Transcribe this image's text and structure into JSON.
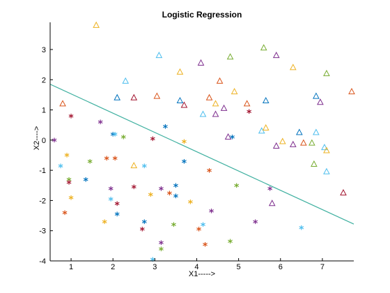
{
  "chart_data": {
    "type": "scatter",
    "title": "Logistic Regression",
    "xlabel": "X1----->",
    "ylabel": "X2---->",
    "xlim": [
      0.5,
      7.75
    ],
    "ylim": [
      -4,
      3.9
    ],
    "xticks": [
      1,
      2,
      3,
      4,
      5,
      6,
      7
    ],
    "yticks": [
      -4,
      -3,
      -2,
      -1,
      0,
      1,
      2,
      3
    ],
    "grid": false,
    "legend": "none",
    "marker_colors": [
      "#0072bd",
      "#d95319",
      "#edb120",
      "#7e2f8e",
      "#77ac30",
      "#4dbeee",
      "#a2142f"
    ],
    "series": [
      {
        "marker": "triangle",
        "points": [
          {
            "x": 1.6,
            "y": 3.8,
            "c": 2
          },
          {
            "x": 3.1,
            "y": 2.8,
            "c": 5
          },
          {
            "x": 4.1,
            "y": 2.55,
            "c": 3
          },
          {
            "x": 4.8,
            "y": 2.75,
            "c": 4
          },
          {
            "x": 5.6,
            "y": 3.05,
            "c": 4
          },
          {
            "x": 5.9,
            "y": 2.8,
            "c": 3
          },
          {
            "x": 6.3,
            "y": 2.4,
            "c": 2
          },
          {
            "x": 7.1,
            "y": 2.2,
            "c": 4
          },
          {
            "x": 2.3,
            "y": 1.95,
            "c": 5
          },
          {
            "x": 3.6,
            "y": 2.25,
            "c": 2
          },
          {
            "x": 4.55,
            "y": 1.95,
            "c": 1
          },
          {
            "x": 7.7,
            "y": 1.6,
            "c": 1
          },
          {
            "x": 0.8,
            "y": 1.2,
            "c": 1
          },
          {
            "x": 2.1,
            "y": 1.4,
            "c": 0
          },
          {
            "x": 2.5,
            "y": 1.4,
            "c": 6
          },
          {
            "x": 3.05,
            "y": 1.45,
            "c": 1
          },
          {
            "x": 3.6,
            "y": 1.3,
            "c": 0
          },
          {
            "x": 3.7,
            "y": 1.15,
            "c": 6
          },
          {
            "x": 4.3,
            "y": 1.4,
            "c": 1
          },
          {
            "x": 4.45,
            "y": 1.2,
            "c": 2
          },
          {
            "x": 4.9,
            "y": 1.6,
            "c": 2
          },
          {
            "x": 5.2,
            "y": 1.2,
            "c": 1
          },
          {
            "x": 5.65,
            "y": 1.3,
            "c": 0
          },
          {
            "x": 6.85,
            "y": 1.45,
            "c": 0
          },
          {
            "x": 6.95,
            "y": 1.25,
            "c": 3
          },
          {
            "x": 4.15,
            "y": 0.85,
            "c": 5
          },
          {
            "x": 4.45,
            "y": 0.85,
            "c": 3
          },
          {
            "x": 4.65,
            "y": 1.05,
            "c": 3
          },
          {
            "x": 5.55,
            "y": 0.3,
            "c": 5
          },
          {
            "x": 5.65,
            "y": 0.4,
            "c": 2
          },
          {
            "x": 6.45,
            "y": 0.25,
            "c": 0
          },
          {
            "x": 6.85,
            "y": 0.25,
            "c": 5
          },
          {
            "x": 4.75,
            "y": 0.1,
            "c": 3
          },
          {
            "x": 5.9,
            "y": -0.2,
            "c": 3
          },
          {
            "x": 6.05,
            "y": -0.05,
            "c": 2
          },
          {
            "x": 6.3,
            "y": -0.15,
            "c": 3
          },
          {
            "x": 6.55,
            "y": -0.1,
            "c": 1
          },
          {
            "x": 6.75,
            "y": -0.1,
            "c": 4
          },
          {
            "x": 7.05,
            "y": -0.25,
            "c": 5
          },
          {
            "x": 7.1,
            "y": -0.35,
            "c": 2
          },
          {
            "x": 6.8,
            "y": -0.8,
            "c": 4
          },
          {
            "x": 7.1,
            "y": -1.05,
            "c": 5
          },
          {
            "x": 7.5,
            "y": -1.75,
            "c": 6
          },
          {
            "x": 5.8,
            "y": -2.1,
            "c": 3
          },
          {
            "x": 2.5,
            "y": -0.85,
            "c": 2
          }
        ]
      },
      {
        "marker": "star",
        "points": [
          {
            "x": 1.0,
            "y": 0.75,
            "c": 6
          },
          {
            "x": 1.7,
            "y": 0.55,
            "c": 3
          },
          {
            "x": 0.6,
            "y": -0.05,
            "c": 3
          },
          {
            "x": 2.0,
            "y": 0.15,
            "c": 0
          },
          {
            "x": 2.05,
            "y": 0.15,
            "c": 5
          },
          {
            "x": 2.25,
            "y": 0.05,
            "c": 4
          },
          {
            "x": 2.95,
            "y": 0.0,
            "c": 6
          },
          {
            "x": 3.25,
            "y": 0.4,
            "c": 0
          },
          {
            "x": 3.7,
            "y": -0.1,
            "c": 2
          },
          {
            "x": 4.85,
            "y": 0.05,
            "c": 0
          },
          {
            "x": 5.25,
            "y": 0.9,
            "c": 6
          },
          {
            "x": 0.9,
            "y": -0.55,
            "c": 2
          },
          {
            "x": 0.75,
            "y": -0.9,
            "c": 5
          },
          {
            "x": 1.45,
            "y": -0.75,
            "c": 4
          },
          {
            "x": 1.85,
            "y": -0.65,
            "c": 1
          },
          {
            "x": 2.05,
            "y": -0.65,
            "c": 1
          },
          {
            "x": 2.75,
            "y": -0.9,
            "c": 5
          },
          {
            "x": 3.7,
            "y": -0.75,
            "c": 0
          },
          {
            "x": 4.3,
            "y": -1.05,
            "c": 1
          },
          {
            "x": 0.95,
            "y": -1.35,
            "c": 4
          },
          {
            "x": 0.95,
            "y": -1.45,
            "c": 6
          },
          {
            "x": 1.35,
            "y": -1.35,
            "c": 0
          },
          {
            "x": 1.95,
            "y": -1.65,
            "c": 3
          },
          {
            "x": 2.5,
            "y": -1.6,
            "c": 6
          },
          {
            "x": 2.9,
            "y": -1.85,
            "c": 2
          },
          {
            "x": 3.15,
            "y": -1.65,
            "c": 3
          },
          {
            "x": 3.35,
            "y": -1.8,
            "c": 1
          },
          {
            "x": 3.5,
            "y": -1.55,
            "c": 0
          },
          {
            "x": 3.5,
            "y": -1.9,
            "c": 0
          },
          {
            "x": 4.95,
            "y": -1.55,
            "c": 4
          },
          {
            "x": 5.75,
            "y": -1.65,
            "c": 3
          },
          {
            "x": 1.0,
            "y": -1.95,
            "c": 2
          },
          {
            "x": 1.95,
            "y": -2.0,
            "c": 5
          },
          {
            "x": 2.1,
            "y": -2.15,
            "c": 6
          },
          {
            "x": 3.85,
            "y": -2.1,
            "c": 2
          },
          {
            "x": 0.85,
            "y": -2.45,
            "c": 1
          },
          {
            "x": 2.1,
            "y": -2.5,
            "c": 0
          },
          {
            "x": 1.8,
            "y": -2.75,
            "c": 2
          },
          {
            "x": 2.75,
            "y": -2.75,
            "c": 0
          },
          {
            "x": 3.45,
            "y": -2.85,
            "c": 4
          },
          {
            "x": 4.35,
            "y": -2.4,
            "c": 3
          },
          {
            "x": 4.15,
            "y": -2.85,
            "c": 5
          },
          {
            "x": 2.7,
            "y": -3.0,
            "c": 6
          },
          {
            "x": 4.05,
            "y": -3.0,
            "c": 1
          },
          {
            "x": 3.15,
            "y": -3.45,
            "c": 3
          },
          {
            "x": 3.15,
            "y": -3.65,
            "c": 4
          },
          {
            "x": 4.2,
            "y": -3.5,
            "c": 1
          },
          {
            "x": 4.8,
            "y": -3.4,
            "c": 4
          },
          {
            "x": 5.4,
            "y": -2.75,
            "c": 3
          },
          {
            "x": 6.5,
            "y": -2.95,
            "c": 5
          },
          {
            "x": 2.95,
            "y": -4.0,
            "c": 5
          }
        ]
      }
    ],
    "decision_boundary": {
      "type": "line",
      "color": "#3fb0a0",
      "points": [
        {
          "x": 0.5,
          "y": 1.85
        },
        {
          "x": 7.75,
          "y": -2.78
        }
      ]
    }
  }
}
